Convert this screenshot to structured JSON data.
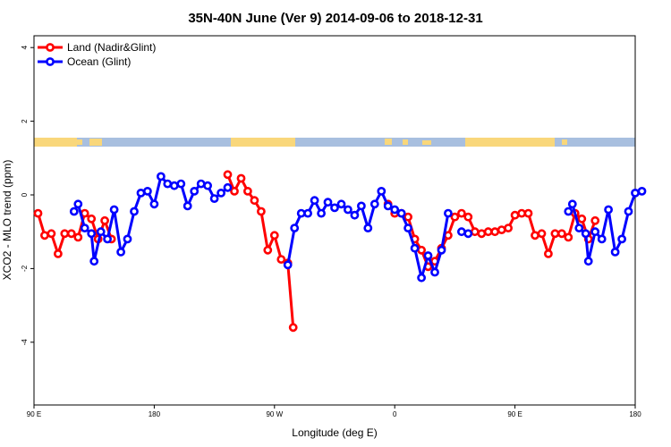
{
  "chart_data": {
    "type": "line",
    "title": "35N-40N June (Ver 9)   2014-09-06 to 2018-12-31",
    "xlabel": "Longitude (deg E)",
    "ylabel": "XCO2 - MLO trend (ppm)",
    "xlim": [
      90,
      540
    ],
    "ylim": [
      -5.5,
      4.2
    ],
    "x_ticks": [
      {
        "value": 90,
        "label": "90 E"
      },
      {
        "value": 180,
        "label": "180"
      },
      {
        "value": 270,
        "label": "90 W"
      },
      {
        "value": 360,
        "label": "0"
      },
      {
        "value": 450,
        "label": "90 E"
      },
      {
        "value": 540,
        "label": "180"
      }
    ],
    "y_ticks": [
      {
        "value": 4,
        "label": "4"
      },
      {
        "value": 2,
        "label": "2"
      },
      {
        "value": 0,
        "label": "0"
      },
      {
        "value": -2,
        "label": "-2"
      },
      {
        "value": -4,
        "label": "-4"
      }
    ],
    "legend_position": "top-left",
    "series": [
      {
        "name": "Land (Nadir&Glint)",
        "color": "#ff0000",
        "segments": [
          [
            [
              93,
              -0.5
            ],
            [
              98,
              -1.1
            ],
            [
              103,
              -1.05
            ],
            [
              108,
              -1.6
            ],
            [
              113,
              -1.05
            ],
            [
              118,
              -1.05
            ],
            [
              123,
              -1.15
            ],
            [
              128,
              -0.5
            ],
            [
              133,
              -0.65
            ],
            [
              138,
              -1.2
            ],
            [
              143,
              -0.7
            ],
            [
              148,
              -1.2
            ]
          ],
          [
            [
              235,
              0.55
            ],
            [
              240,
              0.1
            ],
            [
              245,
              0.45
            ],
            [
              250,
              0.1
            ],
            [
              255,
              -0.15
            ],
            [
              260,
              -0.45
            ],
            [
              265,
              -1.5
            ],
            [
              270,
              -1.1
            ],
            [
              275,
              -1.75
            ],
            [
              280,
              -1.85
            ],
            [
              284,
              -3.6
            ]
          ],
          [
            [
              355,
              -0.25
            ],
            [
              360,
              -0.5
            ],
            [
              365,
              -0.5
            ],
            [
              370,
              -0.6
            ],
            [
              375,
              -1.2
            ],
            [
              380,
              -1.5
            ],
            [
              385,
              -1.95
            ],
            [
              390,
              -1.8
            ],
            [
              395,
              -1.45
            ],
            [
              400,
              -1.1
            ],
            [
              405,
              -0.6
            ],
            [
              410,
              -0.5
            ],
            [
              415,
              -0.6
            ],
            [
              420,
              -1.0
            ],
            [
              425,
              -1.05
            ],
            [
              430,
              -1.0
            ],
            [
              435,
              -1.0
            ],
            [
              440,
              -0.95
            ],
            [
              445,
              -0.9
            ],
            [
              450,
              -0.55
            ],
            [
              455,
              -0.5
            ],
            [
              460,
              -0.5
            ],
            [
              465,
              -1.1
            ],
            [
              470,
              -1.05
            ],
            [
              475,
              -1.6
            ],
            [
              480,
              -1.05
            ],
            [
              485,
              -1.05
            ],
            [
              490,
              -1.15
            ],
            [
              495,
              -0.5
            ],
            [
              500,
              -0.65
            ],
            [
              505,
              -1.2
            ],
            [
              510,
              -0.7
            ]
          ]
        ]
      },
      {
        "name": "Ocean (Glint)",
        "color": "#0000ff",
        "segments": [
          [
            [
              120,
              -0.45
            ],
            [
              123,
              -0.25
            ],
            [
              128,
              -0.9
            ],
            [
              133,
              -1.05
            ],
            [
              135,
              -1.8
            ],
            [
              140,
              -1.0
            ],
            [
              145,
              -1.2
            ],
            [
              150,
              -0.4
            ],
            [
              155,
              -1.55
            ],
            [
              160,
              -1.2
            ],
            [
              165,
              -0.45
            ],
            [
              170,
              0.05
            ],
            [
              175,
              0.1
            ],
            [
              180,
              -0.25
            ],
            [
              185,
              0.5
            ],
            [
              190,
              0.3
            ],
            [
              195,
              0.25
            ],
            [
              200,
              0.3
            ],
            [
              205,
              -0.3
            ],
            [
              210,
              0.1
            ],
            [
              215,
              0.3
            ],
            [
              220,
              0.25
            ],
            [
              225,
              -0.1
            ],
            [
              230,
              0.05
            ],
            [
              235,
              0.2
            ]
          ],
          [
            [
              280,
              -1.9
            ],
            [
              285,
              -0.9
            ],
            [
              290,
              -0.5
            ],
            [
              295,
              -0.5
            ],
            [
              300,
              -0.15
            ],
            [
              305,
              -0.5
            ],
            [
              310,
              -0.2
            ],
            [
              315,
              -0.35
            ],
            [
              320,
              -0.25
            ],
            [
              325,
              -0.4
            ],
            [
              330,
              -0.55
            ],
            [
              335,
              -0.3
            ],
            [
              340,
              -0.9
            ],
            [
              345,
              -0.25
            ],
            [
              350,
              0.1
            ],
            [
              355,
              -0.3
            ],
            [
              360,
              -0.4
            ],
            [
              365,
              -0.5
            ],
            [
              370,
              -0.9
            ],
            [
              375,
              -1.45
            ],
            [
              380,
              -2.25
            ],
            [
              385,
              -1.65
            ],
            [
              390,
              -2.1
            ],
            [
              395,
              -1.5
            ],
            [
              400,
              -0.5
            ]
          ],
          [
            [
              410,
              -1.0
            ],
            [
              415,
              -1.05
            ]
          ],
          [
            [
              490,
              -0.45
            ],
            [
              493,
              -0.25
            ],
            [
              498,
              -0.9
            ],
            [
              503,
              -1.05
            ],
            [
              505,
              -1.8
            ],
            [
              510,
              -1.0
            ],
            [
              515,
              -1.2
            ],
            [
              520,
              -0.4
            ],
            [
              525,
              -1.55
            ],
            [
              530,
              -1.2
            ],
            [
              535,
              -0.45
            ],
            [
              540,
              0.05
            ],
            [
              545,
              0.1
            ]
          ]
        ]
      }
    ]
  }
}
